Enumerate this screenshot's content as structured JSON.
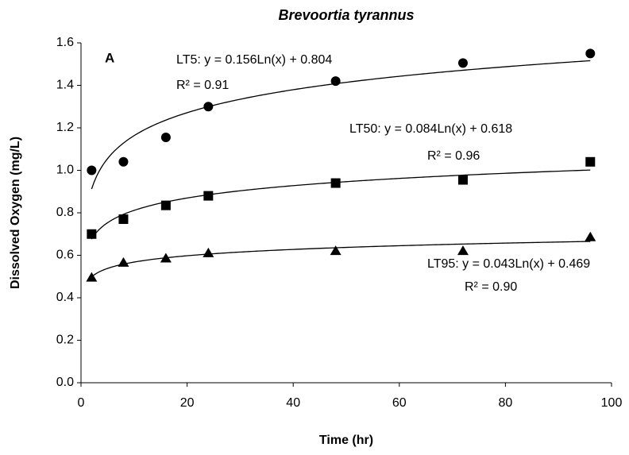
{
  "chart_data": {
    "type": "scatter",
    "title": "Brevoortia tyrannus",
    "panel_label": "A",
    "x_label": "Time (hr)",
    "y_label": "Dissolved Oxygen (mg/L)",
    "xlim": [
      0,
      100
    ],
    "xticks": [
      0,
      20,
      40,
      60,
      80,
      100
    ],
    "ylim": [
      0,
      1.6
    ],
    "yticks": [
      {
        "value": 0,
        "label": "0.0"
      },
      {
        "value": 0.2,
        "label": "0.2"
      },
      {
        "value": 0.4,
        "label": "0.4"
      },
      {
        "value": 0.6,
        "label": "0.6"
      },
      {
        "value": 0.8,
        "label": "0.8"
      },
      {
        "value": 1,
        "label": "1.0"
      },
      {
        "value": 1.2,
        "label": "1.2"
      },
      {
        "value": 1.4,
        "label": "1.4"
      },
      {
        "value": 1.6,
        "label": "1.6"
      }
    ],
    "grid": false,
    "series": [
      {
        "marker": "circle",
        "color": "#000000",
        "x": [
          2,
          8,
          16,
          24,
          48,
          72,
          96
        ],
        "values": [
          1.0,
          1.04,
          1.155,
          1.3,
          1.42,
          1.505,
          1.55
        ],
        "trend": {
          "a": 0.156,
          "b": 0.804,
          "equation": "LT5:  y = 0.156Ln(x) + 0.804",
          "r2": "R² = 0.91"
        }
      },
      {
        "marker": "square",
        "color": "#000000",
        "x": [
          2,
          8,
          16,
          24,
          48,
          72,
          96
        ],
        "values": [
          0.7,
          0.77,
          0.835,
          0.88,
          0.94,
          0.955,
          1.04
        ],
        "trend": {
          "a": 0.084,
          "b": 0.618,
          "equation": "LT50:  y = 0.084Ln(x) + 0.618",
          "r2": "R² = 0.96"
        }
      },
      {
        "marker": "triangle",
        "color": "#000000",
        "x": [
          2,
          8,
          16,
          24,
          48,
          72,
          96
        ],
        "values": [
          0.495,
          0.565,
          0.585,
          0.61,
          0.62,
          0.62,
          0.685
        ],
        "trend": {
          "a": 0.043,
          "b": 0.469,
          "equation": "LT95:  y = 0.043Ln(x) + 0.469",
          "r2": "R² = 0.90"
        }
      }
    ]
  }
}
